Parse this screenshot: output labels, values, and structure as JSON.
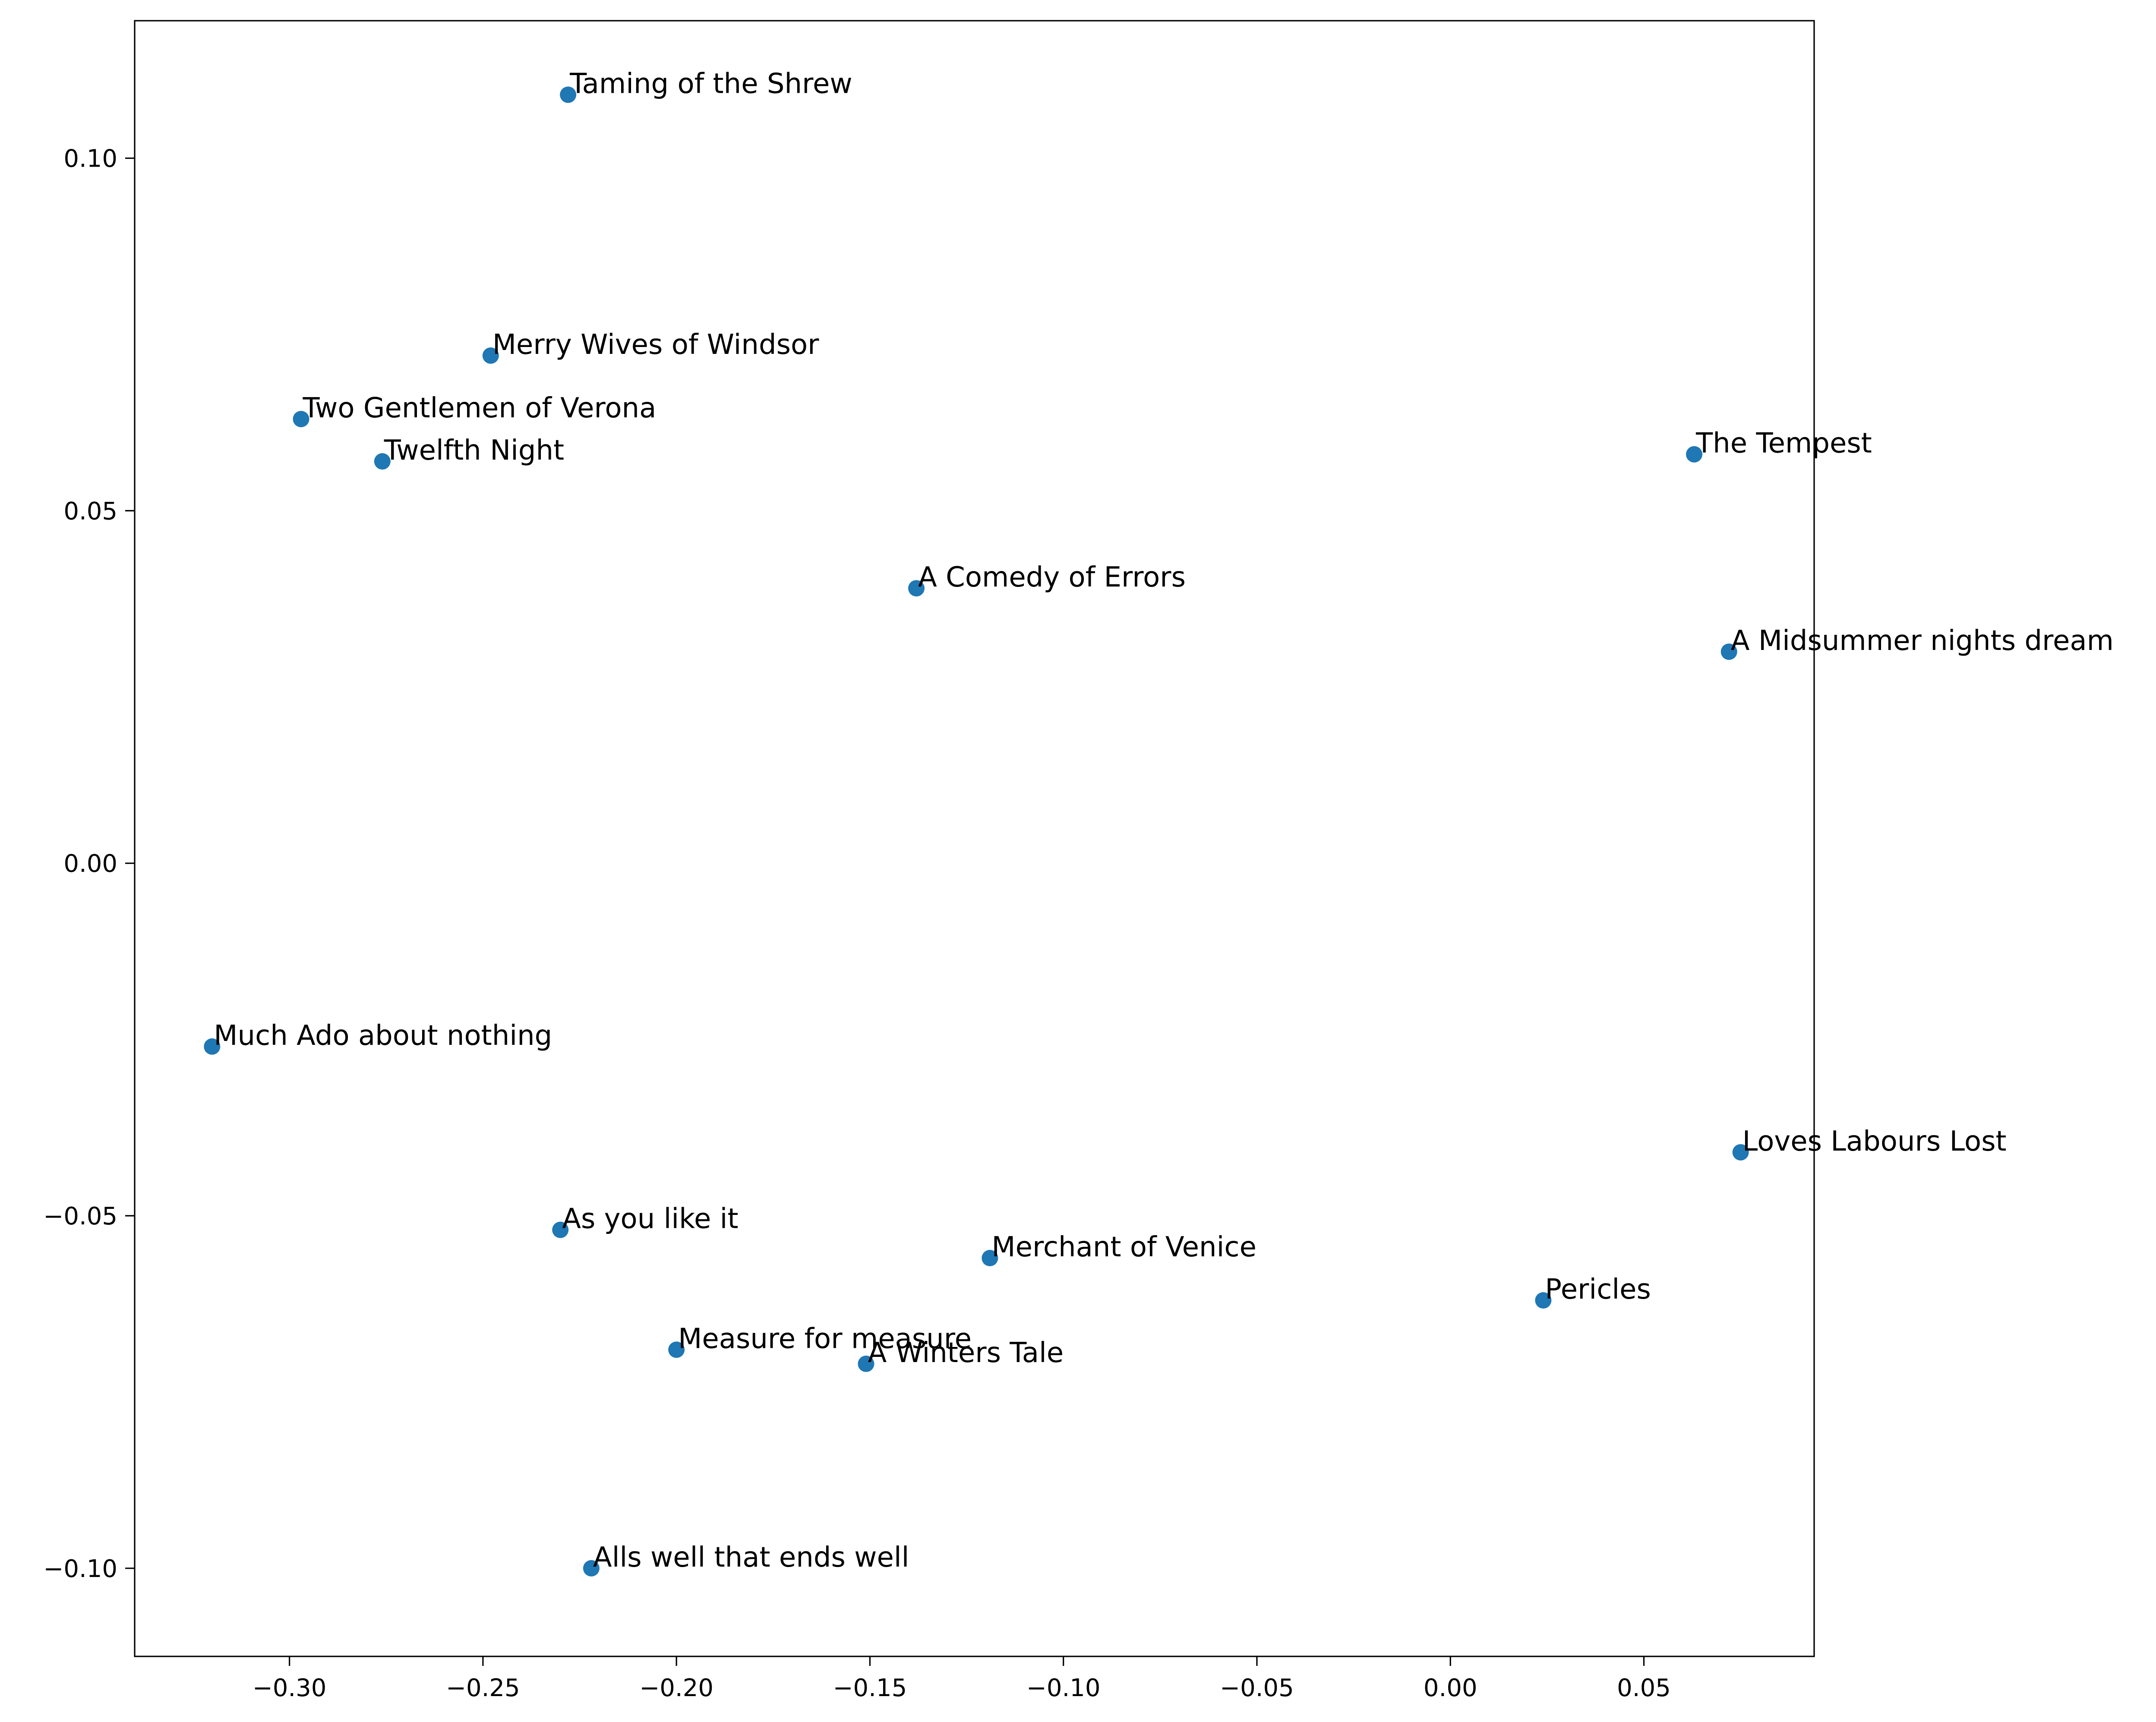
{
  "chart_data": {
    "type": "scatter",
    "title": "",
    "xlabel": "",
    "ylabel": "",
    "xlim": [
      -0.34,
      0.094
    ],
    "ylim": [
      -0.1125,
      0.1195
    ],
    "grid": false,
    "marker_color": "#1f77b4",
    "x_ticks": [
      -0.3,
      -0.25,
      -0.2,
      -0.15,
      -0.1,
      -0.05,
      0.0,
      0.05
    ],
    "x_tick_labels": [
      "−0.30",
      "−0.25",
      "−0.20",
      "−0.15",
      "−0.10",
      "−0.05",
      "0.00",
      "0.05"
    ],
    "y_ticks": [
      0.1,
      0.05,
      0.0,
      -0.05,
      -0.1
    ],
    "y_tick_labels": [
      "0.10",
      "0.05",
      "0.00",
      "−0.05",
      "−0.10"
    ],
    "points": [
      {
        "label": "Taming of the Shrew",
        "x": -0.228,
        "y": 0.109
      },
      {
        "label": "Merry Wives of Windsor",
        "x": -0.248,
        "y": 0.072
      },
      {
        "label": "Two Gentlemen of Verona",
        "x": -0.297,
        "y": 0.063
      },
      {
        "label": "Twelfth Night",
        "x": -0.276,
        "y": 0.057
      },
      {
        "label": "The Tempest",
        "x": 0.063,
        "y": 0.058
      },
      {
        "label": "A Comedy of Errors",
        "x": -0.138,
        "y": 0.039
      },
      {
        "label": "A Midsummer nights dream",
        "x": 0.072,
        "y": 0.03
      },
      {
        "label": "Much Ado about nothing",
        "x": -0.32,
        "y": -0.026
      },
      {
        "label": "Loves Labours Lost",
        "x": 0.075,
        "y": -0.041
      },
      {
        "label": "As you like it",
        "x": -0.23,
        "y": -0.052
      },
      {
        "label": "Merchant of Venice",
        "x": -0.119,
        "y": -0.056
      },
      {
        "label": "Pericles",
        "x": 0.024,
        "y": -0.062
      },
      {
        "label": "Measure for measure",
        "x": -0.2,
        "y": -0.069
      },
      {
        "label": "A Winters Tale",
        "x": -0.151,
        "y": -0.071
      },
      {
        "label": "Alls well that ends well",
        "x": -0.222,
        "y": -0.1
      }
    ]
  }
}
